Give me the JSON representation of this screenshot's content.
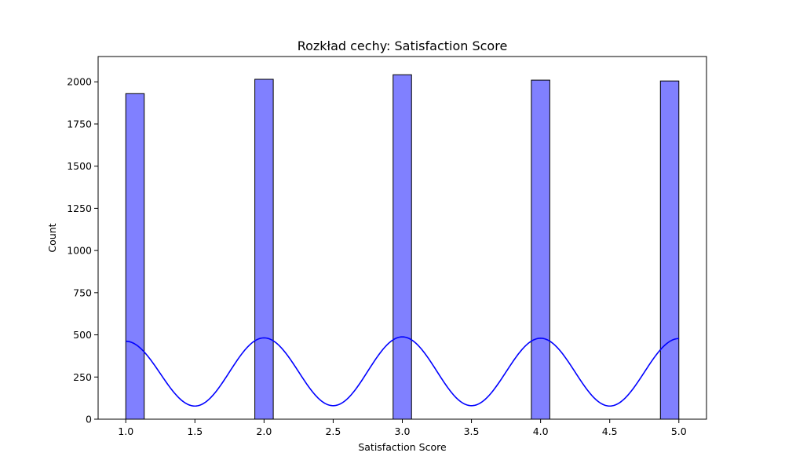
{
  "chart_data": {
    "type": "bar",
    "title": "Rozkład cechy: Satisfaction Score",
    "xlabel": "Satisfaction Score",
    "ylabel": "Count",
    "xlim": [
      0.8,
      5.2
    ],
    "ylim": [
      0,
      2150
    ],
    "xticks": [
      1.0,
      1.5,
      2.0,
      2.5,
      3.0,
      3.5,
      4.0,
      4.5,
      5.0
    ],
    "xtick_labels": [
      "1.0",
      "1.5",
      "2.0",
      "2.5",
      "3.0",
      "3.5",
      "4.0",
      "4.5",
      "5.0"
    ],
    "yticks": [
      0,
      250,
      500,
      750,
      1000,
      1250,
      1500,
      1750,
      2000
    ],
    "ytick_labels": [
      "0",
      "250",
      "500",
      "750",
      "1000",
      "1250",
      "1500",
      "1750",
      "2000"
    ],
    "bin_width": 0.1333,
    "bars": [
      {
        "x_start": 1.0,
        "x_end": 1.1333,
        "value": 1930
      },
      {
        "x_start": 1.9333,
        "x_end": 2.0667,
        "value": 2015
      },
      {
        "x_start": 2.9333,
        "x_end": 3.0667,
        "value": 2042
      },
      {
        "x_start": 3.9333,
        "x_end": 4.0667,
        "value": 2010
      },
      {
        "x_start": 4.8667,
        "x_end": 5.0,
        "value": 2005
      }
    ],
    "kde": {
      "name": "KDE",
      "x_start": 1.0,
      "x_end": 5.0,
      "peaks": [
        {
          "x": 1.0,
          "y": 462
        },
        {
          "x": 2.0,
          "y": 482
        },
        {
          "x": 3.0,
          "y": 488
        },
        {
          "x": 4.0,
          "y": 480
        },
        {
          "x": 5.0,
          "y": 478
        }
      ],
      "troughs": [
        {
          "x": 1.5,
          "y": 78
        },
        {
          "x": 2.5,
          "y": 80
        },
        {
          "x": 3.5,
          "y": 80
        },
        {
          "x": 4.5,
          "y": 78
        }
      ]
    },
    "colors": {
      "bar_fill": "#8080ff",
      "bar_edge": "#000000",
      "kde_line": "#0000ff"
    }
  }
}
